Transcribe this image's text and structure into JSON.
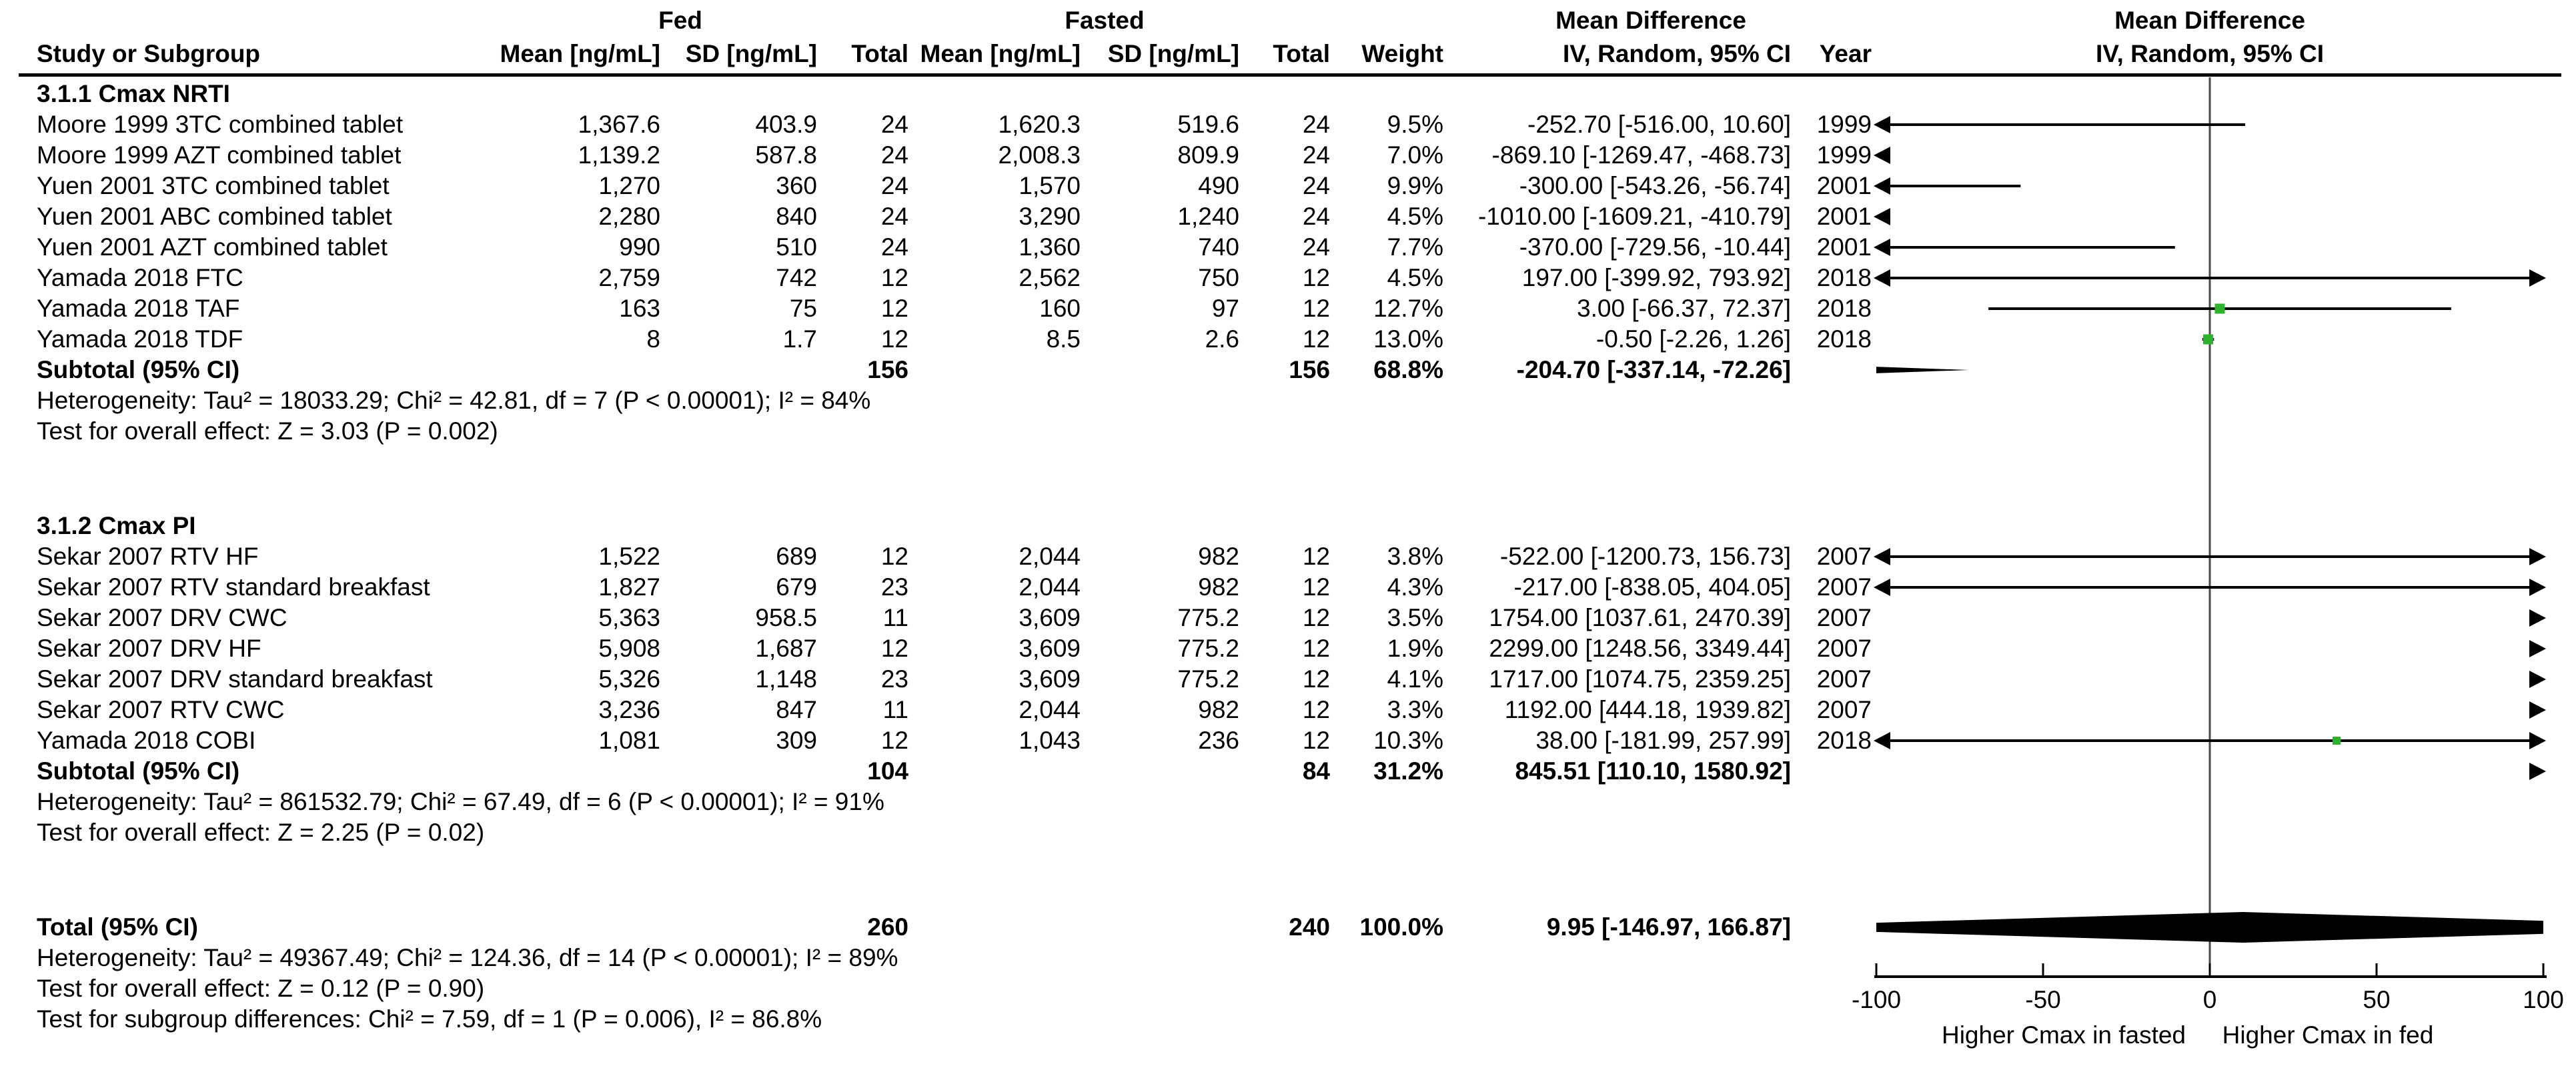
{
  "header": {
    "fed_group": "Fed",
    "fasted_group": "Fasted",
    "md_left": "Mean Difference",
    "md_right": "Mean Difference",
    "study": "Study or Subgroup",
    "fed_mean": "Mean [ng/mL]",
    "fed_sd": "SD [ng/mL]",
    "fed_total": "Total",
    "fasted_mean": "Mean [ng/mL]",
    "fasted_sd": "SD [ng/mL]",
    "fasted_total": "Total",
    "weight": "Weight",
    "ci": "IV, Random, 95% CI",
    "year": "Year",
    "ci_plot": "IV, Random, 95% CI"
  },
  "colors": {
    "marker_green": "#2eb22e",
    "line_black": "#000000",
    "zero_line_grey": "#4a4a4a"
  },
  "chart_data": {
    "type": "forest",
    "axis": {
      "min": -100,
      "max": 100,
      "ticks": [
        -100,
        -50,
        0,
        50,
        100
      ],
      "label_left": "Higher Cmax in fasted",
      "label_right": "Higher Cmax in fed"
    },
    "subgroups": [
      {
        "name": "3.1.1 Cmax NRTI",
        "studies": [
          {
            "label": "Moore 1999 3TC combined tablet",
            "fed_mean": "1,367.6",
            "fed_sd": "403.9",
            "fed_total": "24",
            "fasted_mean": "1,620.3",
            "fasted_sd": "519.6",
            "fasted_total": "24",
            "weight": "9.5%",
            "ci_text": "-252.70 [-516.00, 10.60]",
            "year": "1999",
            "est": -252.7,
            "lo": -516.0,
            "hi": 10.6
          },
          {
            "label": "Moore 1999 AZT combined tablet",
            "fed_mean": "1,139.2",
            "fed_sd": "587.8",
            "fed_total": "24",
            "fasted_mean": "2,008.3",
            "fasted_sd": "809.9",
            "fasted_total": "24",
            "weight": "7.0%",
            "ci_text": "-869.10 [-1269.47, -468.73]",
            "year": "1999",
            "est": -869.1,
            "lo": -1269.47,
            "hi": -468.73
          },
          {
            "label": "Yuen 2001 3TC combined tablet",
            "fed_mean": "1,270",
            "fed_sd": "360",
            "fed_total": "24",
            "fasted_mean": "1,570",
            "fasted_sd": "490",
            "fasted_total": "24",
            "weight": "9.9%",
            "ci_text": "-300.00 [-543.26, -56.74]",
            "year": "2001",
            "est": -300.0,
            "lo": -543.26,
            "hi": -56.74
          },
          {
            "label": "Yuen 2001 ABC combined tablet",
            "fed_mean": "2,280",
            "fed_sd": "840",
            "fed_total": "24",
            "fasted_mean": "3,290",
            "fasted_sd": "1,240",
            "fasted_total": "24",
            "weight": "4.5%",
            "ci_text": "-1010.00 [-1609.21, -410.79]",
            "year": "2001",
            "est": -1010.0,
            "lo": -1609.21,
            "hi": -410.79
          },
          {
            "label": "Yuen 2001 AZT combined tablet",
            "fed_mean": "990",
            "fed_sd": "510",
            "fed_total": "24",
            "fasted_mean": "1,360",
            "fasted_sd": "740",
            "fasted_total": "24",
            "weight": "7.7%",
            "ci_text": "-370.00 [-729.56, -10.44]",
            "year": "2001",
            "est": -370.0,
            "lo": -729.56,
            "hi": -10.44
          },
          {
            "label": "Yamada 2018 FTC",
            "fed_mean": "2,759",
            "fed_sd": "742",
            "fed_total": "12",
            "fasted_mean": "2,562",
            "fasted_sd": "750",
            "fasted_total": "12",
            "weight": "4.5%",
            "ci_text": "197.00 [-399.92, 793.92]",
            "year": "2018",
            "est": 197.0,
            "lo": -399.92,
            "hi": 793.92
          },
          {
            "label": "Yamada 2018 TAF",
            "fed_mean": "163",
            "fed_sd": "75",
            "fed_total": "12",
            "fasted_mean": "160",
            "fasted_sd": "97",
            "fasted_total": "12",
            "weight": "12.7%",
            "ci_text": "3.00 [-66.37, 72.37]",
            "year": "2018",
            "est": 3.0,
            "lo": -66.37,
            "hi": 72.37
          },
          {
            "label": "Yamada 2018 TDF",
            "fed_mean": "8",
            "fed_sd": "1.7",
            "fed_total": "12",
            "fasted_mean": "8.5",
            "fasted_sd": "2.6",
            "fasted_total": "12",
            "weight": "13.0%",
            "ci_text": "-0.50 [-2.26, 1.26]",
            "year": "2018",
            "est": -0.5,
            "lo": -2.26,
            "hi": 1.26
          }
        ],
        "subtotal": {
          "label": "Subtotal (95% CI)",
          "fed_total": "156",
          "fasted_total": "156",
          "weight": "68.8%",
          "ci_text": "-204.70 [-337.14, -72.26]",
          "est": -204.7,
          "lo": -337.14,
          "hi": -72.26
        },
        "heterogeneity": "Heterogeneity: Tau² = 18033.29; Chi² = 42.81, df = 7 (P < 0.00001); I² = 84%",
        "overall_effect": "Test for overall effect: Z = 3.03 (P = 0.002)"
      },
      {
        "name": "3.1.2 Cmax PI",
        "studies": [
          {
            "label": "Sekar 2007 RTV HF",
            "fed_mean": "1,522",
            "fed_sd": "689",
            "fed_total": "12",
            "fasted_mean": "2,044",
            "fasted_sd": "982",
            "fasted_total": "12",
            "weight": "3.8%",
            "ci_text": "-522.00 [-1200.73, 156.73]",
            "year": "2007",
            "est": -522.0,
            "lo": -1200.73,
            "hi": 156.73
          },
          {
            "label": "Sekar 2007 RTV standard breakfast",
            "fed_mean": "1,827",
            "fed_sd": "679",
            "fed_total": "23",
            "fasted_mean": "2,044",
            "fasted_sd": "982",
            "fasted_total": "12",
            "weight": "4.3%",
            "ci_text": "-217.00 [-838.05, 404.05]",
            "year": "2007",
            "est": -217.0,
            "lo": -838.05,
            "hi": 404.05
          },
          {
            "label": "Sekar 2007 DRV CWC",
            "fed_mean": "5,363",
            "fed_sd": "958.5",
            "fed_total": "11",
            "fasted_mean": "3,609",
            "fasted_sd": "775.2",
            "fasted_total": "12",
            "weight": "3.5%",
            "ci_text": "1754.00 [1037.61, 2470.39]",
            "year": "2007",
            "est": 1754.0,
            "lo": 1037.61,
            "hi": 2470.39
          },
          {
            "label": "Sekar 2007 DRV HF",
            "fed_mean": "5,908",
            "fed_sd": "1,687",
            "fed_total": "12",
            "fasted_mean": "3,609",
            "fasted_sd": "775.2",
            "fasted_total": "12",
            "weight": "1.9%",
            "ci_text": "2299.00 [1248.56, 3349.44]",
            "year": "2007",
            "est": 2299.0,
            "lo": 1248.56,
            "hi": 3349.44
          },
          {
            "label": "Sekar 2007 DRV standard breakfast",
            "fed_mean": "5,326",
            "fed_sd": "1,148",
            "fed_total": "23",
            "fasted_mean": "3,609",
            "fasted_sd": "775.2",
            "fasted_total": "12",
            "weight": "4.1%",
            "ci_text": "1717.00 [1074.75, 2359.25]",
            "year": "2007",
            "est": 1717.0,
            "lo": 1074.75,
            "hi": 2359.25
          },
          {
            "label": "Sekar 2007 RTV CWC",
            "fed_mean": "3,236",
            "fed_sd": "847",
            "fed_total": "11",
            "fasted_mean": "2,044",
            "fasted_sd": "982",
            "fasted_total": "12",
            "weight": "3.3%",
            "ci_text": "1192.00 [444.18, 1939.82]",
            "year": "2007",
            "est": 1192.0,
            "lo": 444.18,
            "hi": 1939.82
          },
          {
            "label": "Yamada 2018 COBI",
            "fed_mean": "1,081",
            "fed_sd": "309",
            "fed_total": "12",
            "fasted_mean": "1,043",
            "fasted_sd": "236",
            "fasted_total": "12",
            "weight": "10.3%",
            "ci_text": "38.00 [-181.99, 257.99]",
            "year": "2018",
            "est": 38.0,
            "lo": -181.99,
            "hi": 257.99
          }
        ],
        "subtotal": {
          "label": "Subtotal (95% CI)",
          "fed_total": "104",
          "fasted_total": "84",
          "weight": "31.2%",
          "ci_text": "845.51 [110.10, 1580.92]",
          "est": 845.51,
          "lo": 110.1,
          "hi": 1580.92
        },
        "heterogeneity": "Heterogeneity: Tau² = 861532.79; Chi² = 67.49, df = 6 (P < 0.00001); I² = 91%",
        "overall_effect": "Test for overall effect: Z = 2.25 (P = 0.02)"
      }
    ],
    "total": {
      "label": "Total (95% CI)",
      "fed_total": "260",
      "fasted_total": "240",
      "weight": "100.0%",
      "ci_text": "9.95 [-146.97, 166.87]",
      "est": 9.95,
      "lo": -146.97,
      "hi": 166.87
    },
    "total_heterogeneity": "Heterogeneity: Tau² = 49367.49; Chi² = 124.36, df = 14 (P < 0.00001); I² = 89%",
    "total_overall_effect": "Test for overall effect: Z = 0.12 (P = 0.90)",
    "subgroup_differences": "Test for subgroup differences: Chi² = 7.59, df = 1 (P = 0.006), I² = 86.8%"
  }
}
